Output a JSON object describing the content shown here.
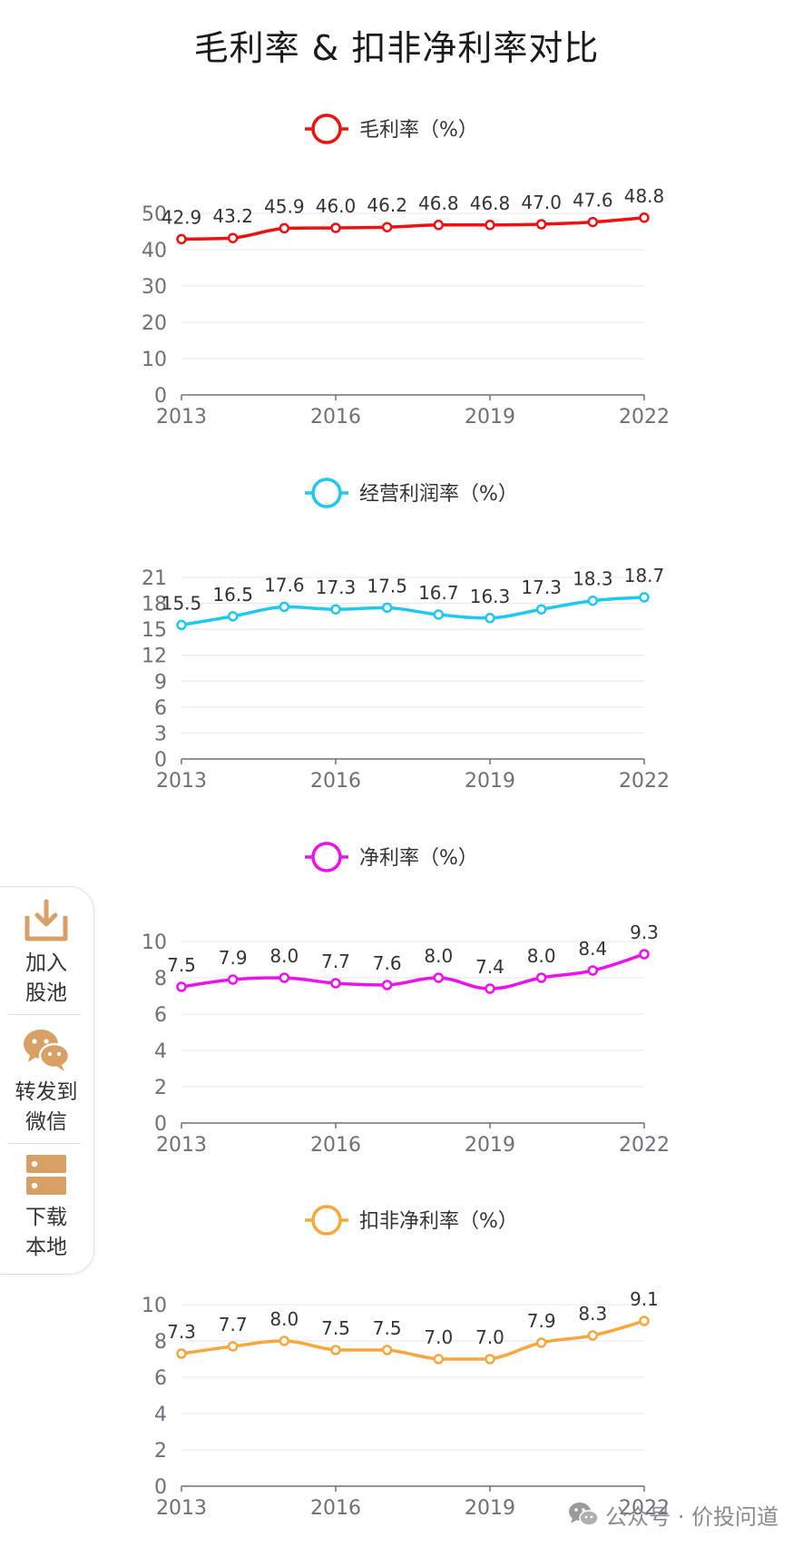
{
  "title": "毛利率 & 扣非净利率对比",
  "sidebar": {
    "add_label_1": "加入",
    "add_label_2": "股池",
    "share_label_1": "转发到",
    "share_label_2": "微信",
    "download_label_1": "下载",
    "download_label_2": "本地"
  },
  "watermark": {
    "text": "公众号 · 价投问道"
  },
  "chart_data": [
    {
      "type": "line",
      "title": "毛利率 & 扣非净利率对比",
      "legend": "毛利率（%）",
      "color": "#ee1111",
      "categories": [
        "2013",
        "2014",
        "2015",
        "2016",
        "2017",
        "2018",
        "2019",
        "2020",
        "2021",
        "2022"
      ],
      "values": [
        42.9,
        43.2,
        45.9,
        46.0,
        46.2,
        46.8,
        46.8,
        47.0,
        47.6,
        48.8
      ],
      "value_labels": [
        "42.9",
        "43.2",
        "45.9",
        "46.0",
        "46.2",
        "46.8",
        "46.8",
        "47.0",
        "47.6",
        "48.8"
      ],
      "x_tick_labels": [
        "2013",
        "2016",
        "2019",
        "2022"
      ],
      "y_ticks": [
        0,
        10,
        20,
        30,
        40,
        50
      ],
      "ylim": [
        0,
        50
      ],
      "grid": true
    },
    {
      "type": "line",
      "legend": "经营利润率（%）",
      "color": "#1fc8ef",
      "categories": [
        "2013",
        "2014",
        "2015",
        "2016",
        "2017",
        "2018",
        "2019",
        "2020",
        "2021",
        "2022"
      ],
      "values": [
        15.5,
        16.5,
        17.6,
        17.3,
        17.5,
        16.7,
        16.3,
        17.3,
        18.3,
        18.7
      ],
      "value_labels": [
        "15.5",
        "16.5",
        "17.6",
        "17.3",
        "17.5",
        "16.7",
        "16.3",
        "17.3",
        "18.3",
        "18.7"
      ],
      "x_tick_labels": [
        "2013",
        "2016",
        "2019",
        "2022"
      ],
      "y_ticks": [
        0,
        3,
        6,
        9,
        12,
        15,
        18,
        21
      ],
      "ylim": [
        0,
        21
      ],
      "grid": true
    },
    {
      "type": "line",
      "legend": "净利率（%）",
      "color": "#ee11ee",
      "categories": [
        "2013",
        "2014",
        "2015",
        "2016",
        "2017",
        "2018",
        "2019",
        "2020",
        "2021",
        "2022"
      ],
      "values": [
        7.5,
        7.9,
        8.0,
        7.7,
        7.6,
        8.0,
        7.4,
        8.0,
        8.4,
        9.3
      ],
      "value_labels": [
        "7.5",
        "7.9",
        "8.0",
        "7.7",
        "7.6",
        "8.0",
        "7.4",
        "8.0",
        "8.4",
        "9.3"
      ],
      "x_tick_labels": [
        "2013",
        "2016",
        "2019",
        "2022"
      ],
      "y_ticks": [
        0,
        2,
        4,
        6,
        8,
        10
      ],
      "ylim": [
        0,
        10
      ],
      "grid": true
    },
    {
      "type": "line",
      "legend": "扣非净利率（%）",
      "color": "#f8a63e",
      "categories": [
        "2013",
        "2014",
        "2015",
        "2016",
        "2017",
        "2018",
        "2019",
        "2020",
        "2021",
        "2022"
      ],
      "values": [
        7.3,
        7.7,
        8.0,
        7.5,
        7.5,
        7.0,
        7.0,
        7.9,
        8.3,
        9.1
      ],
      "value_labels": [
        "7.3",
        "7.7",
        "8.0",
        "7.5",
        "7.5",
        "7.0",
        "7.0",
        "7.9",
        "8.3",
        "9.1"
      ],
      "x_tick_labels": [
        "2013",
        "2016",
        "2019",
        "2022"
      ],
      "y_ticks": [
        0,
        2,
        4,
        6,
        8,
        10
      ],
      "ylim": [
        0,
        10
      ],
      "grid": true
    }
  ]
}
